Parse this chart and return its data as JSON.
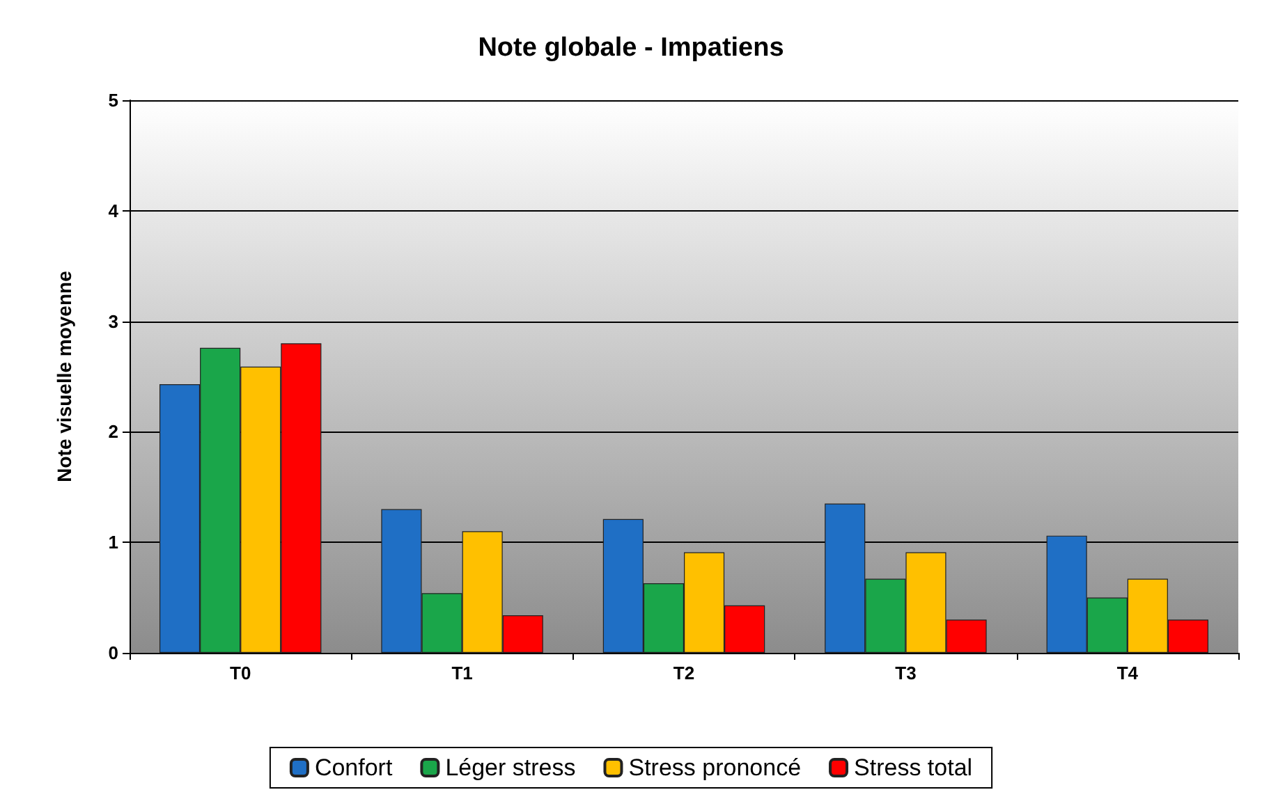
{
  "chart_data": {
    "type": "bar",
    "title": "Note globale - Impatiens",
    "ylabel": "Note visuelle moyenne",
    "categories": [
      "T0",
      "T1",
      "T2",
      "T3",
      "T4"
    ],
    "series": [
      {
        "name": "Confort",
        "color": "#1f6fc5",
        "values": [
          2.43,
          1.3,
          1.21,
          1.35,
          1.06
        ]
      },
      {
        "name": "Léger stress",
        "color": "#1aa64a",
        "values": [
          2.76,
          0.54,
          0.63,
          0.67,
          0.5
        ]
      },
      {
        "name": "Stress prononcé",
        "color": "#ffc000",
        "values": [
          2.59,
          1.1,
          0.91,
          0.91,
          0.67
        ]
      },
      {
        "name": "Stress total",
        "color": "#ff0000",
        "values": [
          2.8,
          0.34,
          0.43,
          0.3,
          0.3
        ]
      }
    ],
    "ylim": [
      0,
      5
    ],
    "yticks": [
      0,
      1,
      2,
      3,
      4,
      5
    ],
    "grid": "y",
    "legend": "bottom"
  }
}
